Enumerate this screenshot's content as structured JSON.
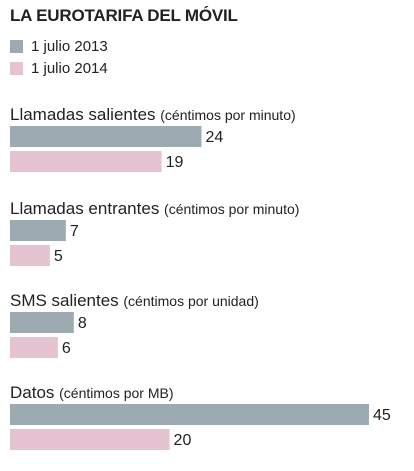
{
  "chart_data": {
    "type": "bar",
    "title": "LA EUROTARIFA DEL MÓVIL",
    "series": [
      {
        "name": "1 julio 2013",
        "color": "#9eaab1"
      },
      {
        "name": "1 julio 2014",
        "color": "#e5c3d0"
      }
    ],
    "groups": [
      {
        "label": "Llamadas salientes",
        "unit": "(céntimos por minuto)",
        "values": [
          24,
          19
        ]
      },
      {
        "label": "Llamadas entrantes",
        "unit": "(céntimos por minuto)",
        "values": [
          7,
          5
        ]
      },
      {
        "label": "SMS salientes",
        "unit": "(céntimos por unidad)",
        "values": [
          8,
          6
        ]
      },
      {
        "label": "Datos",
        "unit": "(céntimos por MB)",
        "values": [
          45,
          20
        ]
      }
    ],
    "xlim": [
      0,
      45
    ]
  }
}
